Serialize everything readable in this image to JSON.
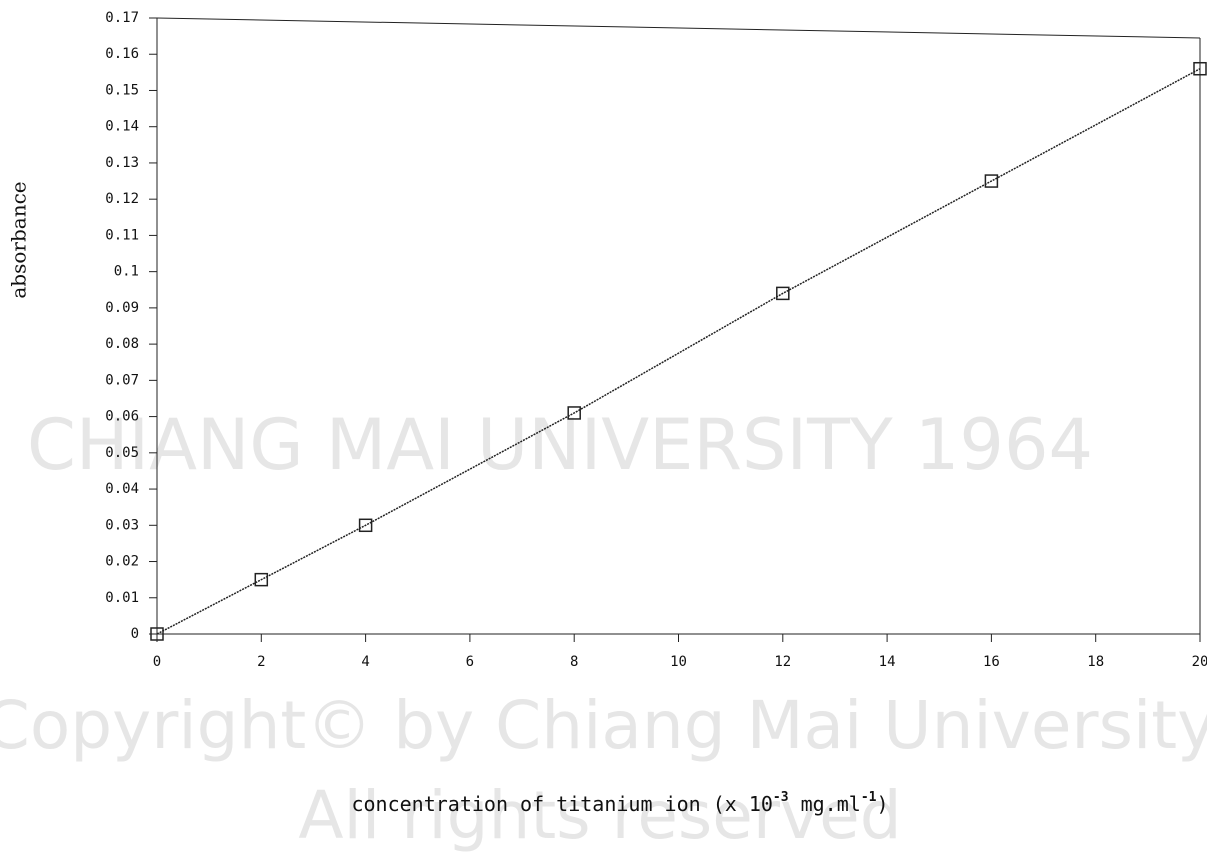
{
  "chart_data": {
    "type": "line",
    "y_label": "absorbance",
    "x_label": [
      "concentration of titanium ion (x 10",
      "-3",
      " mg.ml",
      "-1",
      ")"
    ],
    "x": [
      0,
      2,
      4,
      8,
      12,
      16,
      20
    ],
    "series": [
      {
        "values": [
          0,
          0.015,
          0.03,
          0.061,
          0.094,
          0.125,
          0.156
        ],
        "color": "#222222"
      }
    ],
    "xlim": [
      0,
      20
    ],
    "xticks": [
      0,
      2,
      4,
      6,
      8,
      10,
      12,
      14,
      16,
      18,
      20
    ],
    "ylim": [
      0,
      0.17
    ],
    "yticks": [
      0,
      0.01,
      0.02,
      0.03,
      0.04,
      0.05,
      0.06,
      0.07,
      0.08,
      0.09,
      0.1,
      0.11,
      0.12,
      0.13,
      0.14,
      0.15,
      0.16,
      0.17
    ],
    "grid": false,
    "watermark": [
      "CHIANG MAI UNIVERSITY 1964",
      "Copyright© by Chiang Mai University",
      "All rights reserved"
    ]
  }
}
